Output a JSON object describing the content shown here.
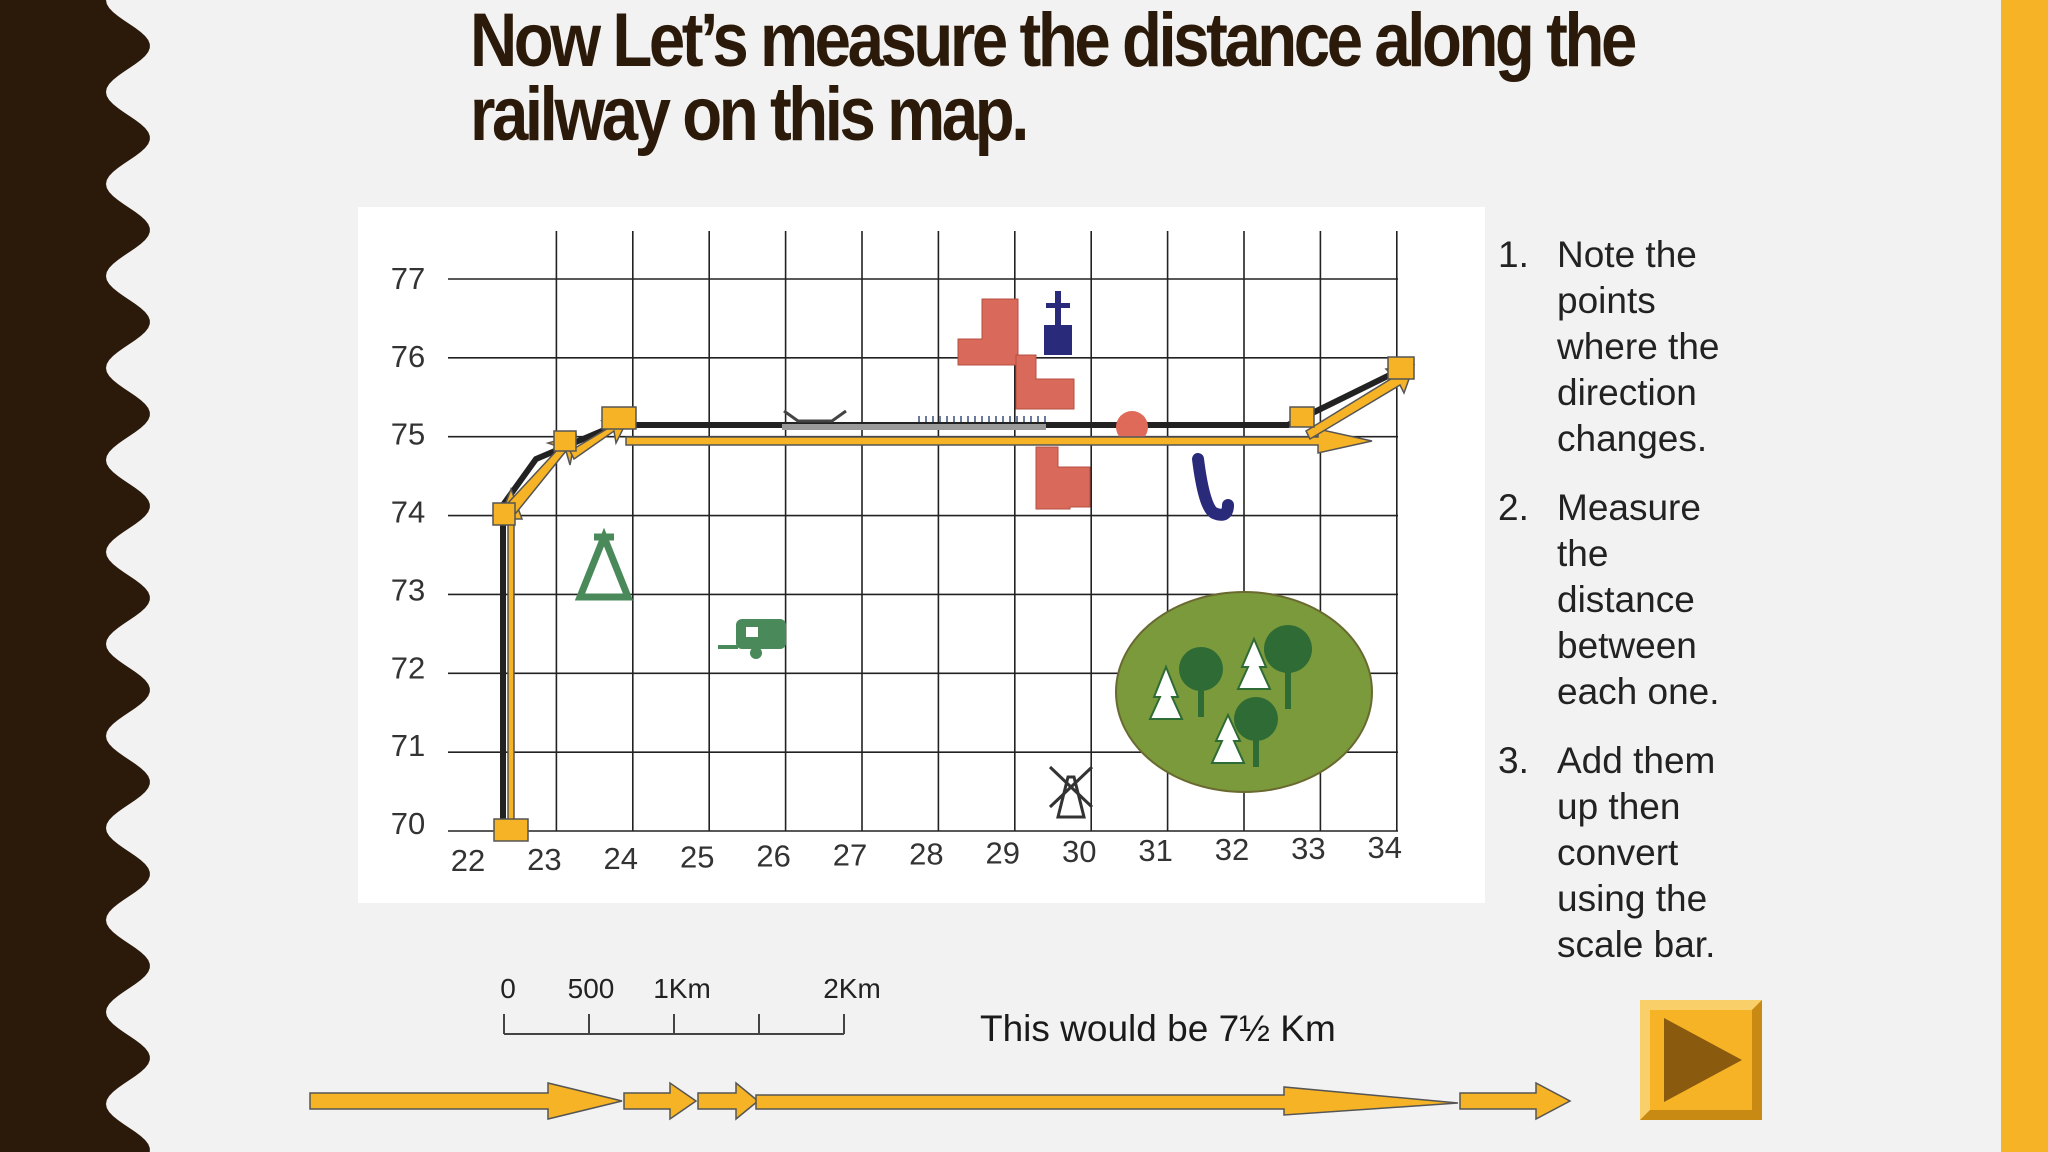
{
  "slide": {
    "title_line1": "Now Let’s measure the distance along the",
    "title_line2": "railway on this map."
  },
  "map": {
    "x_labels": [
      "22",
      "23",
      "24",
      "25",
      "26",
      "27",
      "28",
      "29",
      "30",
      "31",
      "32",
      "33",
      "34"
    ],
    "y_labels": [
      "77",
      "76",
      "75",
      "74",
      "73",
      "72",
      "71",
      "70"
    ]
  },
  "steps": [
    {
      "num": "1.",
      "lines": [
        "Note the",
        "points",
        "where the",
        "direction",
        "changes."
      ]
    },
    {
      "num": "2.",
      "lines": [
        "Measure",
        "the",
        "distance",
        "between",
        "each one."
      ]
    },
    {
      "num": "3.",
      "lines": [
        "Add them",
        "up then",
        "convert",
        "using the",
        "scale bar."
      ]
    }
  ],
  "scale_bar": {
    "labels": [
      "0",
      "500",
      "1Km",
      "2Km"
    ]
  },
  "conclusion": "This would be 7½ Km",
  "colors": {
    "accent": "#f5b325",
    "dark": "#2b1a09",
    "route": "#f5b325",
    "building": "#d9695a",
    "woodland": "#7a9a3c"
  },
  "icons": {
    "next": "play-triangle-icon",
    "church": "church-icon",
    "tent": "tent-icon",
    "caravan": "caravan-icon",
    "windmill": "windmill-icon",
    "woodland": "woodland-icon"
  }
}
